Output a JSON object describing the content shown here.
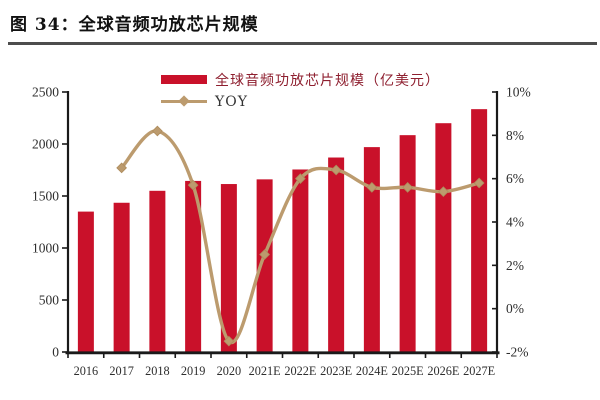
{
  "figure": {
    "title": "图 34：全球音频功放芯片规模"
  },
  "chart_data": {
    "type": "bar",
    "subtype": "bar-line-combo",
    "title": "全球音频功放芯片规模",
    "categories": [
      "2016",
      "2017",
      "2018",
      "2019",
      "2020",
      "2021E",
      "2022E",
      "2023E",
      "2024E",
      "2025E",
      "2026E",
      "2027E"
    ],
    "series": [
      {
        "name": "全球音频功放芯片规模（亿美元）",
        "type": "bar",
        "axis": "left",
        "color": "#C9112A",
        "values": [
          1350,
          1435,
          1550,
          1645,
          1615,
          1660,
          1755,
          1870,
          1970,
          2085,
          2200,
          2335
        ]
      },
      {
        "name": "YOY",
        "type": "line",
        "axis": "right",
        "color": "#BC9B6E",
        "marker": "diamond",
        "values": [
          null,
          6.5,
          8.2,
          5.7,
          -1.5,
          2.5,
          6.0,
          6.4,
          5.6,
          5.6,
          5.4,
          5.8
        ]
      }
    ],
    "left_axis": {
      "min": 0,
      "max": 2500,
      "tick_step": 500,
      "tick_labels": [
        "0",
        "500",
        "1000",
        "1500",
        "2000",
        "2500"
      ]
    },
    "right_axis": {
      "min": -2,
      "max": 10,
      "tick_step": 2,
      "unit": "%",
      "tick_labels": [
        "-2%",
        "0%",
        "2%",
        "4%",
        "6%",
        "8%",
        "10%"
      ]
    },
    "legend_position": "top-center",
    "grid": false,
    "colors": {
      "bar": "#C9112A",
      "line": "#BC9B6E",
      "legend_text_bar": "#8E1F2F",
      "legend_text_line": "#333333",
      "axis_text": "#2E2E2E",
      "axis_line": "#1A1A1A"
    }
  }
}
